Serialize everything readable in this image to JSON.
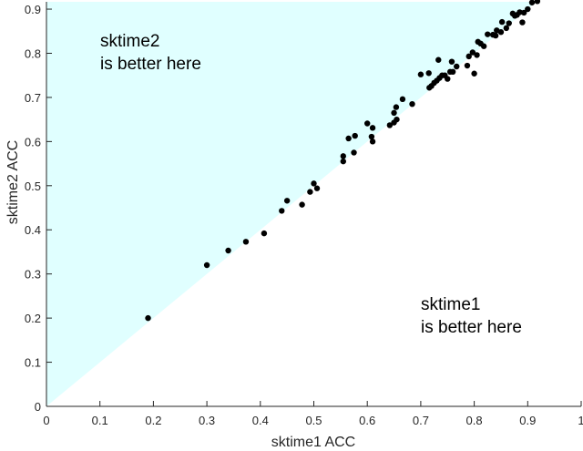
{
  "chart_data": {
    "type": "scatter",
    "title": "",
    "xlabel": "sktime1 ACC",
    "ylabel": "sktime2 ACC",
    "xlim": [
      0,
      1
    ],
    "ylim": [
      0,
      0.92
    ],
    "grid": false,
    "legend": null,
    "x_ticks": [
      "0",
      "0.1",
      "0.2",
      "0.3",
      "0.4",
      "0.5",
      "0.6",
      "0.7",
      "0.8",
      "0.9",
      "1"
    ],
    "y_ticks": [
      "0",
      "0.1",
      "0.2",
      "0.3",
      "0.4",
      "0.5",
      "0.6",
      "0.7",
      "0.8",
      "0.9"
    ],
    "shaded_region": {
      "description": "area above diagonal y=x",
      "color": "#e0ffff"
    },
    "annotations": [
      {
        "text": [
          "sktime2",
          "is better here"
        ],
        "x": 0.1,
        "y": 0.82
      },
      {
        "text": [
          "sktime1",
          "is better here"
        ],
        "x": 0.7,
        "y": 0.22
      }
    ],
    "marker_color": "#000000",
    "series": [
      {
        "name": "datasets",
        "points": [
          [
            0.19,
            0.2
          ],
          [
            0.3,
            0.32
          ],
          [
            0.34,
            0.353
          ],
          [
            0.373,
            0.373
          ],
          [
            0.407,
            0.392
          ],
          [
            0.44,
            0.443
          ],
          [
            0.45,
            0.466
          ],
          [
            0.478,
            0.457
          ],
          [
            0.493,
            0.486
          ],
          [
            0.5,
            0.505
          ],
          [
            0.506,
            0.494
          ],
          [
            0.555,
            0.567
          ],
          [
            0.555,
            0.555
          ],
          [
            0.575,
            0.575
          ],
          [
            0.565,
            0.607
          ],
          [
            0.577,
            0.613
          ],
          [
            0.6,
            0.641
          ],
          [
            0.61,
            0.631
          ],
          [
            0.608,
            0.611
          ],
          [
            0.61,
            0.6
          ],
          [
            0.642,
            0.637
          ],
          [
            0.65,
            0.643
          ],
          [
            0.655,
            0.65
          ],
          [
            0.65,
            0.665
          ],
          [
            0.654,
            0.678
          ],
          [
            0.666,
            0.696
          ],
          [
            0.684,
            0.685
          ],
          [
            0.7,
            0.752
          ],
          [
            0.715,
            0.755
          ],
          [
            0.716,
            0.722
          ],
          [
            0.72,
            0.726
          ],
          [
            0.725,
            0.733
          ],
          [
            0.73,
            0.738
          ],
          [
            0.735,
            0.744
          ],
          [
            0.74,
            0.75
          ],
          [
            0.745,
            0.75
          ],
          [
            0.75,
            0.742
          ],
          [
            0.755,
            0.758
          ],
          [
            0.76,
            0.758
          ],
          [
            0.767,
            0.77
          ],
          [
            0.733,
            0.785
          ],
          [
            0.758,
            0.781
          ],
          [
            0.787,
            0.772
          ],
          [
            0.79,
            0.793
          ],
          [
            0.797,
            0.802
          ],
          [
            0.8,
            0.754
          ],
          [
            0.805,
            0.796
          ],
          [
            0.807,
            0.826
          ],
          [
            0.812,
            0.822
          ],
          [
            0.818,
            0.816
          ],
          [
            0.825,
            0.843
          ],
          [
            0.835,
            0.842
          ],
          [
            0.84,
            0.84
          ],
          [
            0.842,
            0.852
          ],
          [
            0.85,
            0.848
          ],
          [
            0.852,
            0.871
          ],
          [
            0.86,
            0.857
          ],
          [
            0.865,
            0.868
          ],
          [
            0.872,
            0.89
          ],
          [
            0.876,
            0.885
          ],
          [
            0.88,
            0.887
          ],
          [
            0.885,
            0.893
          ],
          [
            0.89,
            0.87
          ],
          [
            0.893,
            0.892
          ],
          [
            0.9,
            0.9
          ],
          [
            0.908,
            0.915
          ],
          [
            0.918,
            0.918
          ]
        ]
      }
    ]
  }
}
